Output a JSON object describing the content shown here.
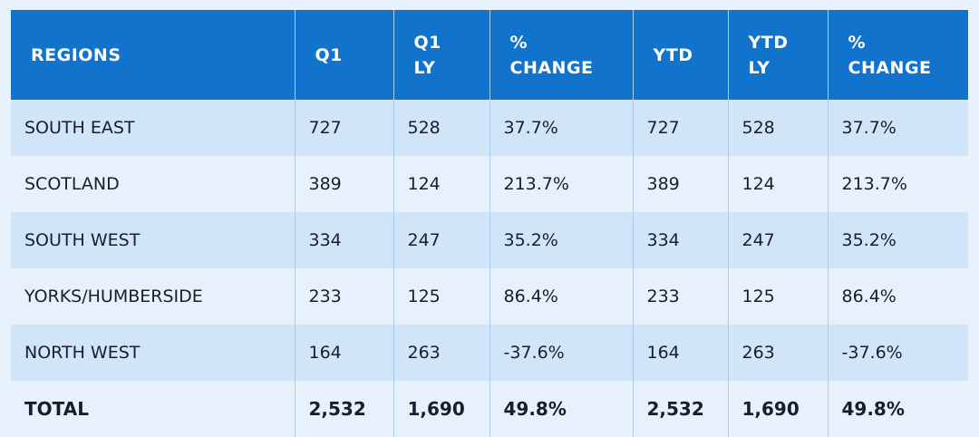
{
  "table": {
    "header": [
      "REGIONS",
      "Q1",
      "Q1 LY",
      "% CHANGE",
      "YTD",
      "YTD LY",
      "% CHANGE"
    ],
    "rows": [
      [
        "SOUTH EAST",
        "727",
        "528",
        "37.7%",
        "727",
        "528",
        "37.7%"
      ],
      [
        "SCOTLAND",
        "389",
        "124",
        "213.7%",
        "389",
        "124",
        "213.7%"
      ],
      [
        "SOUTH WEST",
        "334",
        "247",
        "35.2%",
        "334",
        "247",
        "35.2%"
      ],
      [
        "YORKS/HUMBERSIDE",
        "233",
        "125",
        "86.4%",
        "233",
        "125",
        "86.4%"
      ],
      [
        "NORTH WEST",
        "164",
        "263",
        "-37.6%",
        "164",
        "263",
        "-37.6%"
      ]
    ],
    "total": [
      "TOTAL",
      "2,532",
      "1,690",
      "49.8%",
      "2,532",
      "1,690",
      "49.8%"
    ]
  }
}
